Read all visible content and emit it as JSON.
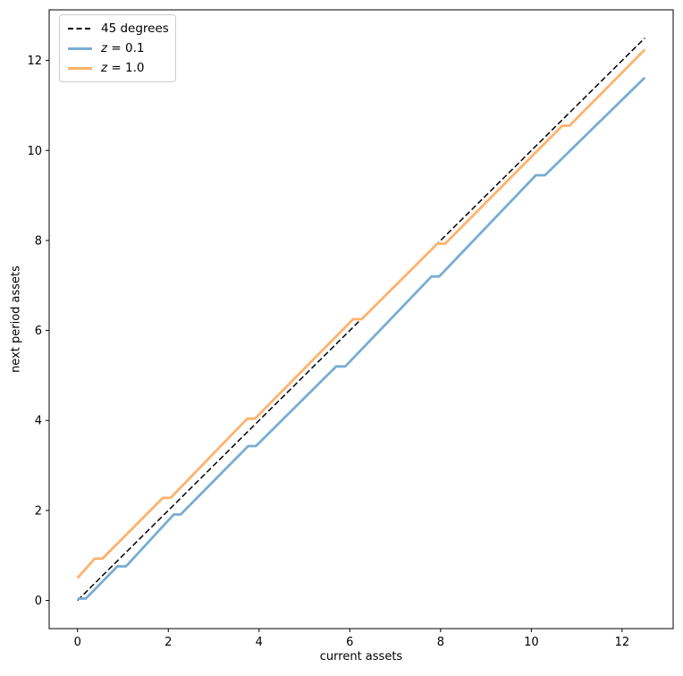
{
  "figure": {
    "background": "#ffffff",
    "text_color": "#000000"
  },
  "chart_data": {
    "type": "line",
    "title": "",
    "xlabel": "current assets",
    "ylabel": "next period assets",
    "xlim": [
      -0.625,
      13.125
    ],
    "ylim": [
      -0.625,
      13.125
    ],
    "x_ticks": [
      0,
      2,
      4,
      6,
      8,
      10,
      12
    ],
    "y_ticks": [
      0,
      2,
      4,
      6,
      8,
      10,
      12
    ],
    "grid": false,
    "legend_position": "upper-left",
    "series": [
      {
        "name": "45-degrees",
        "label": "45 degrees",
        "color": "#000000",
        "style": "dashed",
        "width": 1.5,
        "points": [
          [
            0,
            0
          ],
          [
            12.5,
            12.5
          ]
        ]
      },
      {
        "name": "z-0.1",
        "label": "z = 0.1",
        "color": "#79ADD3",
        "style": "solid",
        "width": 2.8,
        "points": [
          [
            0,
            0.04
          ],
          [
            0.18,
            0.04
          ],
          [
            0.88,
            0.76
          ],
          [
            1.07,
            0.76
          ],
          [
            2.12,
            1.91
          ],
          [
            2.27,
            1.91
          ],
          [
            3.76,
            3.43
          ],
          [
            3.93,
            3.43
          ],
          [
            5.7,
            5.2
          ],
          [
            5.9,
            5.2
          ],
          [
            7.8,
            7.2
          ],
          [
            7.97,
            7.2
          ],
          [
            10.1,
            9.45
          ],
          [
            10.3,
            9.45
          ],
          [
            12.5,
            11.62
          ]
        ]
      },
      {
        "name": "z-1.0",
        "label": "z = 1.0",
        "color": "#FFB26E",
        "style": "solid",
        "width": 2.8,
        "points": [
          [
            0,
            0.5
          ],
          [
            0.38,
            0.93
          ],
          [
            0.55,
            0.93
          ],
          [
            1.88,
            2.28
          ],
          [
            2.05,
            2.28
          ],
          [
            3.74,
            4.04
          ],
          [
            3.91,
            4.04
          ],
          [
            6.07,
            6.25
          ],
          [
            6.26,
            6.25
          ],
          [
            7.93,
            7.93
          ],
          [
            8.1,
            7.93
          ],
          [
            10.68,
            10.55
          ],
          [
            10.84,
            10.55
          ],
          [
            12.5,
            12.24
          ]
        ]
      }
    ]
  },
  "legend": {
    "items": [
      {
        "label": "45 degrees"
      },
      {
        "var": "z",
        "rest": " = 0.1"
      },
      {
        "var": "z",
        "rest": " = 1.0"
      }
    ]
  }
}
